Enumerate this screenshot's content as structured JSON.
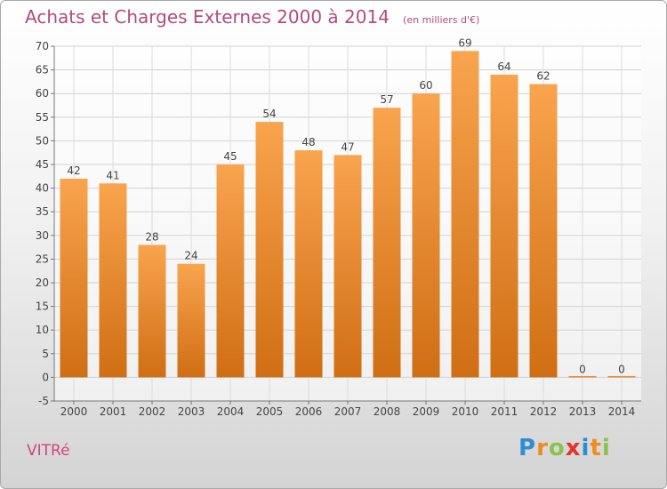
{
  "chart_data": {
    "type": "bar",
    "title": "Achats et Charges Externes 2000 à 2014",
    "subtitle": "(en milliers d'€)",
    "categories": [
      "2000",
      "2001",
      "2002",
      "2003",
      "2004",
      "2005",
      "2006",
      "2007",
      "2008",
      "2009",
      "2010",
      "2011",
      "2012",
      "2013",
      "2014"
    ],
    "values": [
      42,
      41,
      28,
      24,
      45,
      54,
      48,
      47,
      57,
      60,
      69,
      64,
      62,
      0,
      0
    ],
    "ylim": [
      -5,
      70
    ],
    "yticks": [
      -5,
      0,
      5,
      10,
      15,
      20,
      25,
      30,
      35,
      40,
      45,
      50,
      55,
      60,
      65,
      70
    ],
    "grid": true,
    "bar_color_top": "#f9a44e",
    "bar_color_bottom": "#d06e14"
  },
  "place": "VITRé",
  "logo": {
    "letters": [
      "P",
      "r",
      "o",
      "x",
      "i",
      "t",
      "i"
    ],
    "colors": [
      "#2a8fd4",
      "#f08c1e",
      "#8bc34a",
      "#e6332a",
      "#2a8fd4",
      "#f08c1e",
      "#8bc34a"
    ]
  },
  "colors": {
    "title": "#b54a7a",
    "place": "#d0457a"
  }
}
